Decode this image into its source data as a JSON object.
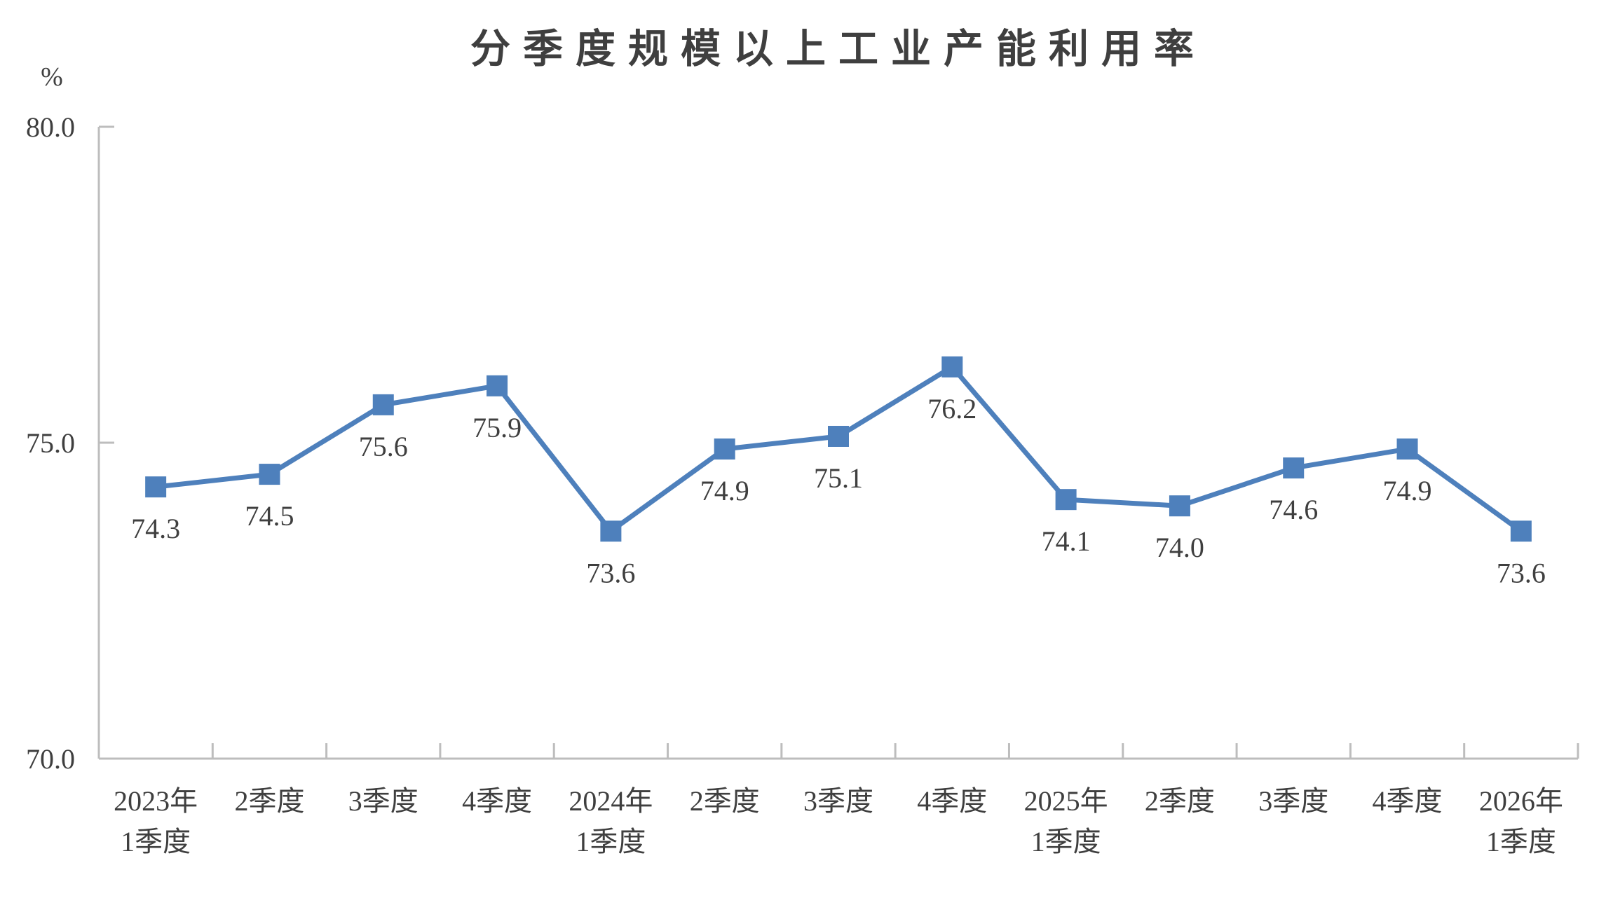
{
  "chart_data": {
    "type": "line",
    "title": "分季度规模以上工业产能利用率",
    "unit_label": "%",
    "categories": [
      "2023年\n1季度",
      "2季度",
      "3季度",
      "4季度",
      "2024年\n1季度",
      "2季度",
      "3季度",
      "4季度",
      "2025年\n1季度",
      "2季度",
      "3季度",
      "4季度",
      "2026年\n1季度"
    ],
    "values": [
      74.3,
      74.5,
      75.6,
      75.9,
      73.6,
      74.9,
      75.1,
      76.2,
      74.1,
      74.0,
      74.6,
      74.9,
      73.6
    ],
    "value_labels": [
      "74.3",
      "74.5",
      "75.6",
      "75.9",
      "73.6",
      "74.9",
      "75.1",
      "76.2",
      "74.1",
      "74.0",
      "74.6",
      "74.9",
      "73.6"
    ],
    "y_ticks": [
      {
        "value": 80,
        "label": "80.0"
      },
      {
        "value": 75,
        "label": "75.0"
      },
      {
        "value": 70,
        "label": "70.0"
      }
    ],
    "ylim": [
      70,
      80
    ],
    "grid": false,
    "legend": "none",
    "data_label_position": "below",
    "colors": {
      "series": "#4E80BC",
      "axis": "#BDBDBD",
      "text": "#3F3F3F"
    }
  }
}
